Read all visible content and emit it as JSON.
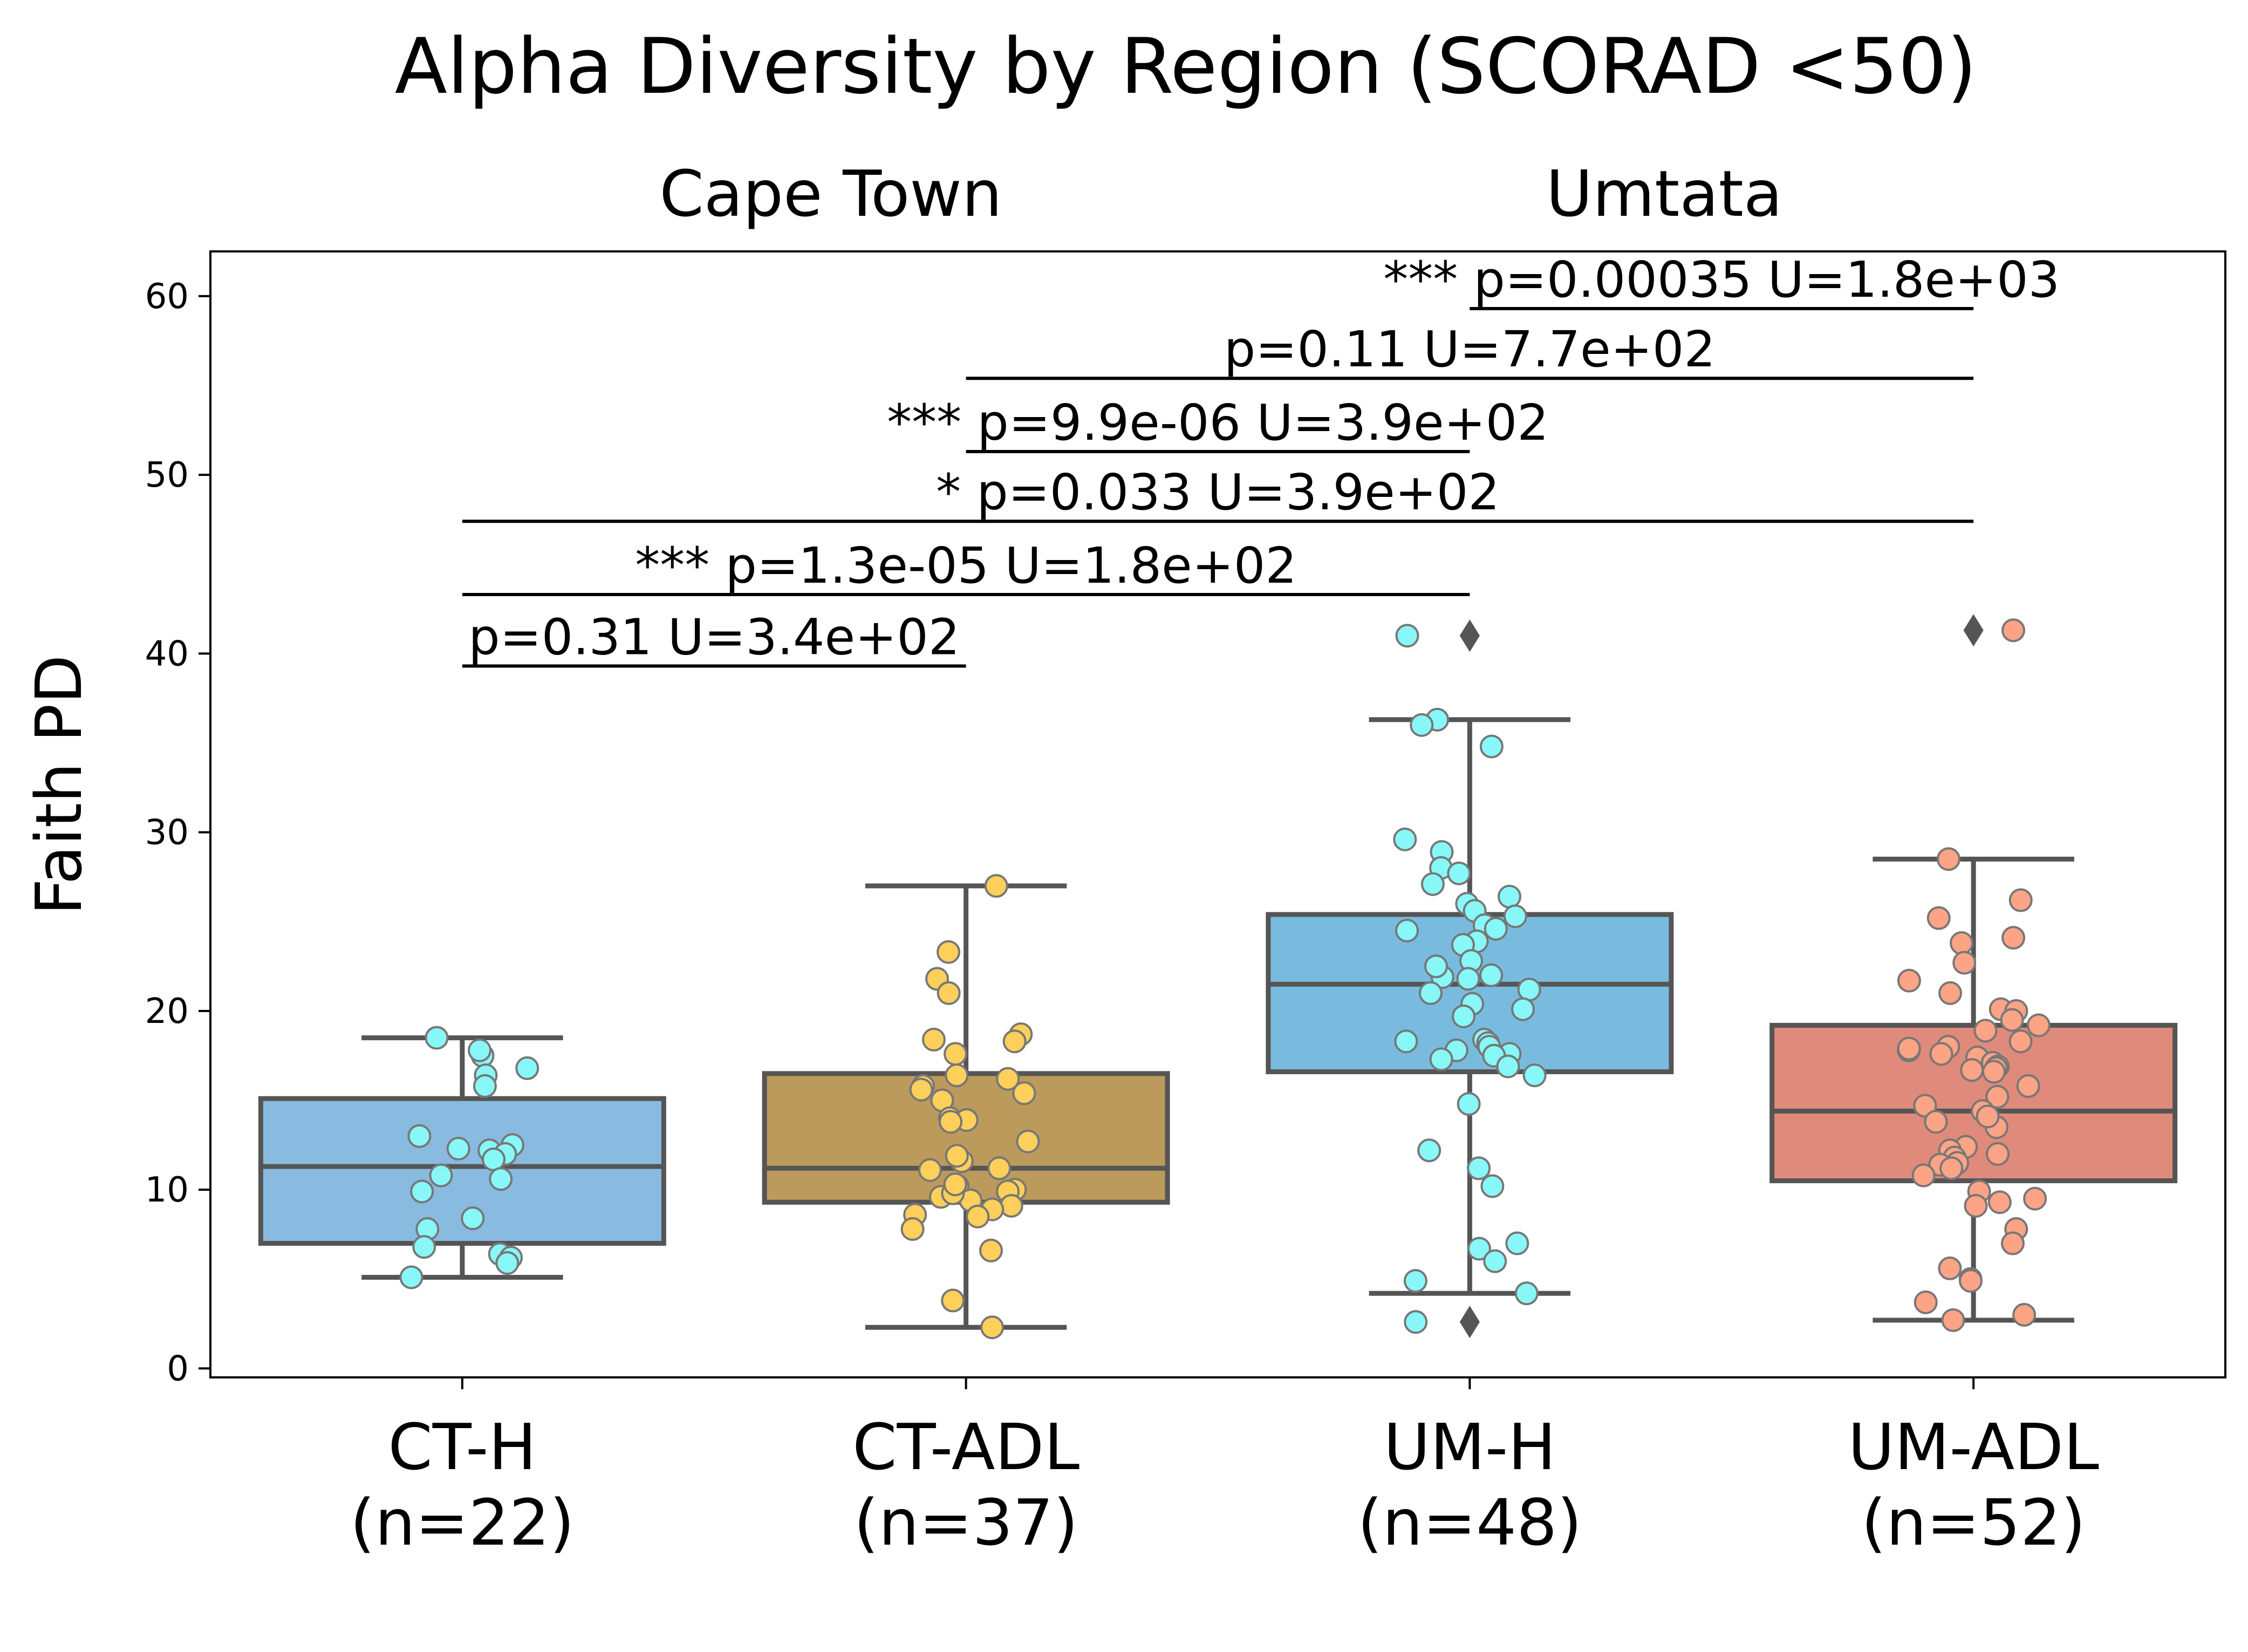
{
  "chart_data": {
    "type": "box",
    "title": "Alpha Diversity by Region (SCORAD <50)",
    "region_labels": [
      "Cape Town",
      "Umtata"
    ],
    "ylabel": "Faith PD",
    "ylim": [
      -0.5,
      62.5
    ],
    "yticks": [
      0,
      10,
      20,
      30,
      40,
      50,
      60
    ],
    "categories": [
      {
        "label": "CT-H",
        "n_label": "(n=22)"
      },
      {
        "label": "CT-ADL",
        "n_label": "(n=37)"
      },
      {
        "label": "UM-H",
        "n_label": "(n=48)"
      },
      {
        "label": "UM-ADL",
        "n_label": "(n=52)"
      }
    ],
    "boxes": [
      {
        "group": "CT-H",
        "whisker_low": 5.1,
        "q1": 7.0,
        "median": 11.3,
        "q3": 15.1,
        "whisker_high": 18.5,
        "fliers": [],
        "box_color": "#89bae0",
        "point_color": "#87f8f7",
        "points": [
          17.5,
          18.5,
          17.8,
          16.8,
          16.4,
          15.8,
          13.0,
          12.5,
          12.2,
          12.0,
          11.7,
          10.8,
          10.6,
          9.9,
          8.4,
          7.8,
          6.8,
          6.4,
          6.2,
          5.9,
          5.1,
          12.3
        ]
      },
      {
        "group": "CT-ADL",
        "whisker_low": 2.3,
        "q1": 9.3,
        "median": 11.2,
        "q3": 16.5,
        "whisker_high": 27.0,
        "fliers": [],
        "box_color": "#bb9a5c",
        "point_color": "#fecf5a",
        "points": [
          27.0,
          23.3,
          21.8,
          21.0,
          18.7,
          18.3,
          17.6,
          16.4,
          16.2,
          15.8,
          15.6,
          15.0,
          14.0,
          13.9,
          12.7,
          11.6,
          11.2,
          11.1,
          10.2,
          10.0,
          9.9,
          9.6,
          9.4,
          9.1,
          8.9,
          8.6,
          8.5,
          7.8,
          6.6,
          3.8,
          2.3,
          18.4,
          13.8,
          9.8,
          10.3,
          15.4,
          11.9
        ]
      },
      {
        "group": "UM-H",
        "whisker_low": 4.2,
        "q1": 16.6,
        "median": 21.5,
        "q3": 25.4,
        "whisker_high": 36.3,
        "fliers": [
          41.0,
          2.6
        ],
        "box_color": "#78bbdf",
        "point_color": "#87f8f7",
        "points": [
          41.0,
          36.3,
          36.0,
          34.8,
          29.6,
          28.9,
          28.0,
          27.7,
          27.1,
          26.4,
          26.0,
          25.6,
          25.3,
          24.8,
          24.6,
          24.5,
          23.9,
          23.7,
          22.8,
          22.0,
          21.9,
          21.8,
          21.2,
          21.0,
          20.4,
          20.1,
          18.4,
          18.3,
          18.2,
          18.0,
          17.8,
          17.6,
          17.5,
          17.3,
          16.9,
          16.4,
          14.8,
          12.2,
          11.2,
          10.2,
          7.0,
          6.7,
          6.0,
          4.9,
          4.2,
          2.6,
          22.5,
          19.7
        ]
      },
      {
        "group": "UM-ADL",
        "whisker_low": 2.7,
        "q1": 10.5,
        "median": 14.4,
        "q3": 19.2,
        "whisker_high": 28.5,
        "fliers": [
          41.3
        ],
        "box_color": "#df8a7a",
        "point_color": "#fea486",
        "points": [
          41.3,
          28.5,
          26.2,
          25.2,
          24.1,
          23.8,
          22.7,
          21.7,
          21.0,
          20.1,
          20.0,
          19.5,
          19.2,
          18.9,
          18.3,
          18.0,
          17.8,
          17.6,
          17.4,
          17.1,
          16.9,
          16.8,
          16.7,
          16.6,
          15.8,
          15.2,
          14.7,
          14.4,
          13.8,
          13.5,
          12.4,
          12.2,
          12.0,
          11.8,
          11.5,
          11.4,
          11.2,
          10.8,
          9.9,
          9.5,
          9.3,
          9.1,
          7.8,
          7.0,
          5.6,
          5.0,
          4.9,
          3.7,
          3.0,
          2.7,
          17.9,
          14.1
        ]
      }
    ],
    "annotations": [
      {
        "from": "CT-H",
        "to": "CT-ADL",
        "y": 39.3,
        "stars": "",
        "text": "p=0.31   U=3.4e+02"
      },
      {
        "from": "CT-H",
        "to": "UM-H",
        "y": 43.3,
        "stars": "***",
        "text": "p=1.3e-05   U=1.8e+02"
      },
      {
        "from": "CT-H",
        "to": "UM-ADL",
        "y": 47.4,
        "stars": "*",
        "text": "p=0.033   U=3.9e+02"
      },
      {
        "from": "CT-ADL",
        "to": "UM-H",
        "y": 51.3,
        "stars": "***",
        "text": "p=9.9e-06   U=3.9e+02"
      },
      {
        "from": "CT-ADL",
        "to": "UM-ADL",
        "y": 55.4,
        "stars": "",
        "text": "p=0.11   U=7.7e+02"
      },
      {
        "from": "UM-H",
        "to": "UM-ADL",
        "y": 59.3,
        "stars": "***",
        "text": "p=0.00035   U=1.8e+03"
      }
    ],
    "grid": false,
    "legend": "none",
    "colors": {
      "box_edge": "#555555",
      "flier": "#555555",
      "point_edge": "#777777"
    }
  }
}
